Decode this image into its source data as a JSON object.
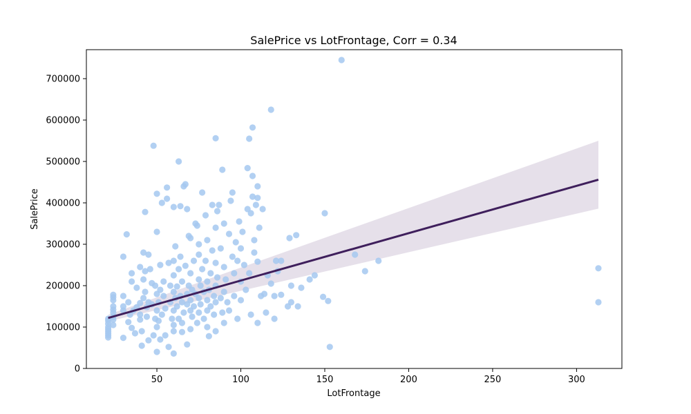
{
  "chart_data": {
    "type": "scatter",
    "title": "SalePrice vs LotFrontage, Corr = 0.34",
    "xlabel": "LotFrontage",
    "ylabel": "SalePrice",
    "xlim": [
      8,
      327
    ],
    "ylim": [
      0,
      770000
    ],
    "xticks": [
      50,
      100,
      150,
      200,
      250,
      300
    ],
    "yticks": [
      0,
      100000,
      200000,
      300000,
      400000,
      500000,
      600000,
      700000
    ],
    "grid": false,
    "point_color": "#a4c8f0",
    "line_color": "#3f1f5c",
    "band_color": "#e2dbe6",
    "regression": {
      "x": [
        21,
        313
      ],
      "y": [
        122000,
        456000
      ],
      "ci_upper": [
        130000,
        550000
      ],
      "ci_lower": [
        114000,
        386000
      ]
    },
    "points": [
      [
        21,
        75000
      ],
      [
        21,
        80000
      ],
      [
        21,
        85000
      ],
      [
        21,
        90000
      ],
      [
        21,
        95000
      ],
      [
        21,
        100000
      ],
      [
        21,
        108000
      ],
      [
        21,
        115000
      ],
      [
        21,
        120000
      ],
      [
        24,
        105000
      ],
      [
        24,
        118000
      ],
      [
        24,
        125000
      ],
      [
        24,
        135000
      ],
      [
        24,
        142000
      ],
      [
        24,
        150000
      ],
      [
        24,
        165000
      ],
      [
        24,
        172000
      ],
      [
        24,
        178000
      ],
      [
        30,
        74000
      ],
      [
        30,
        140000
      ],
      [
        30,
        150000
      ],
      [
        30,
        175000
      ],
      [
        30,
        270000
      ],
      [
        32,
        324000
      ],
      [
        33,
        112000
      ],
      [
        33,
        160000
      ],
      [
        34,
        130000
      ],
      [
        35,
        98000
      ],
      [
        35,
        230000
      ],
      [
        35,
        210000
      ],
      [
        36,
        140000
      ],
      [
        37,
        85000
      ],
      [
        38,
        148000
      ],
      [
        38,
        195000
      ],
      [
        40,
        130000
      ],
      [
        40,
        118000
      ],
      [
        40,
        245000
      ],
      [
        40,
        158000
      ],
      [
        41,
        55000
      ],
      [
        41,
        90000
      ],
      [
        42,
        280000
      ],
      [
        42,
        215000
      ],
      [
        42,
        170000
      ],
      [
        43,
        235000
      ],
      [
        43,
        185000
      ],
      [
        43,
        378000
      ],
      [
        44,
        148000
      ],
      [
        44,
        125000
      ],
      [
        45,
        275000
      ],
      [
        45,
        160000
      ],
      [
        45,
        68000
      ],
      [
        46,
        240000
      ],
      [
        47,
        206000
      ],
      [
        47,
        155000
      ],
      [
        48,
        80000
      ],
      [
        48,
        538000
      ],
      [
        49,
        120000
      ],
      [
        49,
        200000
      ],
      [
        50,
        180000
      ],
      [
        50,
        140000
      ],
      [
        50,
        100000
      ],
      [
        50,
        40000
      ],
      [
        50,
        330000
      ],
      [
        50,
        422000
      ],
      [
        51,
        160000
      ],
      [
        51,
        115000
      ],
      [
        52,
        250000
      ],
      [
        52,
        190000
      ],
      [
        52,
        70000
      ],
      [
        53,
        400000
      ],
      [
        53,
        130000
      ],
      [
        54,
        210000
      ],
      [
        54,
        175000
      ],
      [
        55,
        80000
      ],
      [
        55,
        145000
      ],
      [
        56,
        437000
      ],
      [
        56,
        410000
      ],
      [
        57,
        52000
      ],
      [
        57,
        255000
      ],
      [
        58,
        200000
      ],
      [
        58,
        160000
      ],
      [
        59,
        120000
      ],
      [
        60,
        185000
      ],
      [
        60,
        260000
      ],
      [
        60,
        140000
      ],
      [
        60,
        225000
      ],
      [
        60,
        90000
      ],
      [
        60,
        36000
      ],
      [
        60,
        105000
      ],
      [
        60,
        390000
      ],
      [
        61,
        295000
      ],
      [
        61,
        170000
      ],
      [
        62,
        150000
      ],
      [
        62,
        198000
      ],
      [
        63,
        240000
      ],
      [
        63,
        500000
      ],
      [
        63,
        120000
      ],
      [
        64,
        392000
      ],
      [
        64,
        175000
      ],
      [
        64,
        270000
      ],
      [
        65,
        210000
      ],
      [
        65,
        160000
      ],
      [
        65,
        88000
      ],
      [
        65,
        110000
      ],
      [
        66,
        440000
      ],
      [
        66,
        135000
      ],
      [
        67,
        445000
      ],
      [
        67,
        248000
      ],
      [
        68,
        180000
      ],
      [
        68,
        155000
      ],
      [
        68,
        58000
      ],
      [
        68,
        385000
      ],
      [
        69,
        320000
      ],
      [
        69,
        200000
      ],
      [
        70,
        230000
      ],
      [
        70,
        140000
      ],
      [
        70,
        165000
      ],
      [
        70,
        95000
      ],
      [
        70,
        315000
      ],
      [
        71,
        190000
      ],
      [
        71,
        125000
      ],
      [
        72,
        260000
      ],
      [
        72,
        150000
      ],
      [
        73,
        350000
      ],
      [
        73,
        180000
      ],
      [
        74,
        345000
      ],
      [
        74,
        110000
      ],
      [
        75,
        215000
      ],
      [
        75,
        170000
      ],
      [
        75,
        135000
      ],
      [
        75,
        275000
      ],
      [
        75,
        300000
      ],
      [
        76,
        200000
      ],
      [
        76,
        155000
      ],
      [
        77,
        425000
      ],
      [
        77,
        240000
      ],
      [
        78,
        185000
      ],
      [
        78,
        120000
      ],
      [
        79,
        370000
      ],
      [
        79,
        260000
      ],
      [
        80,
        210000
      ],
      [
        80,
        165000
      ],
      [
        80,
        140000
      ],
      [
        80,
        100000
      ],
      [
        80,
        310000
      ],
      [
        81,
        190000
      ],
      [
        81,
        78000
      ],
      [
        82,
        230000
      ],
      [
        82,
        150000
      ],
      [
        83,
        395000
      ],
      [
        83,
        285000
      ],
      [
        84,
        175000
      ],
      [
        84,
        130000
      ],
      [
        85,
        556000
      ],
      [
        85,
        340000
      ],
      [
        85,
        255000
      ],
      [
        85,
        200000
      ],
      [
        85,
        160000
      ],
      [
        85,
        90000
      ],
      [
        86,
        380000
      ],
      [
        86,
        220000
      ],
      [
        87,
        395000
      ],
      [
        88,
        290000
      ],
      [
        88,
        170000
      ],
      [
        89,
        135000
      ],
      [
        89,
        480000
      ],
      [
        90,
        350000
      ],
      [
        90,
        245000
      ],
      [
        90,
        185000
      ],
      [
        90,
        110000
      ],
      [
        91,
        215000
      ],
      [
        92,
        160000
      ],
      [
        93,
        325000
      ],
      [
        93,
        140000
      ],
      [
        94,
        405000
      ],
      [
        95,
        425000
      ],
      [
        95,
        270000
      ],
      [
        96,
        230000
      ],
      [
        96,
        175000
      ],
      [
        97,
        305000
      ],
      [
        98,
        260000
      ],
      [
        98,
        120000
      ],
      [
        99,
        355000
      ],
      [
        100,
        290000
      ],
      [
        100,
        210000
      ],
      [
        100,
        165000
      ],
      [
        101,
        330000
      ],
      [
        102,
        250000
      ],
      [
        103,
        190000
      ],
      [
        104,
        484000
      ],
      [
        104,
        385000
      ],
      [
        105,
        555000
      ],
      [
        105,
        230000
      ],
      [
        106,
        375000
      ],
      [
        106,
        130000
      ],
      [
        107,
        582000
      ],
      [
        107,
        465000
      ],
      [
        107,
        415000
      ],
      [
        108,
        310000
      ],
      [
        108,
        280000
      ],
      [
        109,
        395000
      ],
      [
        110,
        440000
      ],
      [
        110,
        412000
      ],
      [
        110,
        258000
      ],
      [
        110,
        110000
      ],
      [
        111,
        340000
      ],
      [
        112,
        175000
      ],
      [
        113,
        385000
      ],
      [
        114,
        180000
      ],
      [
        115,
        135000
      ],
      [
        116,
        225000
      ],
      [
        118,
        625000
      ],
      [
        118,
        205000
      ],
      [
        120,
        175000
      ],
      [
        120,
        120000
      ],
      [
        121,
        260000
      ],
      [
        122,
        235000
      ],
      [
        124,
        260000
      ],
      [
        124,
        178000
      ],
      [
        128,
        150000
      ],
      [
        129,
        315000
      ],
      [
        130,
        200000
      ],
      [
        130,
        160000
      ],
      [
        133,
        322000
      ],
      [
        134,
        150000
      ],
      [
        136,
        195000
      ],
      [
        141,
        215000
      ],
      [
        144,
        225000
      ],
      [
        149,
        173000
      ],
      [
        150,
        375000
      ],
      [
        152,
        163000
      ],
      [
        153,
        52000
      ],
      [
        160,
        745000
      ],
      [
        168,
        275000
      ],
      [
        174,
        235000
      ],
      [
        182,
        260000
      ],
      [
        313,
        242000
      ],
      [
        313,
        160000
      ]
    ]
  }
}
